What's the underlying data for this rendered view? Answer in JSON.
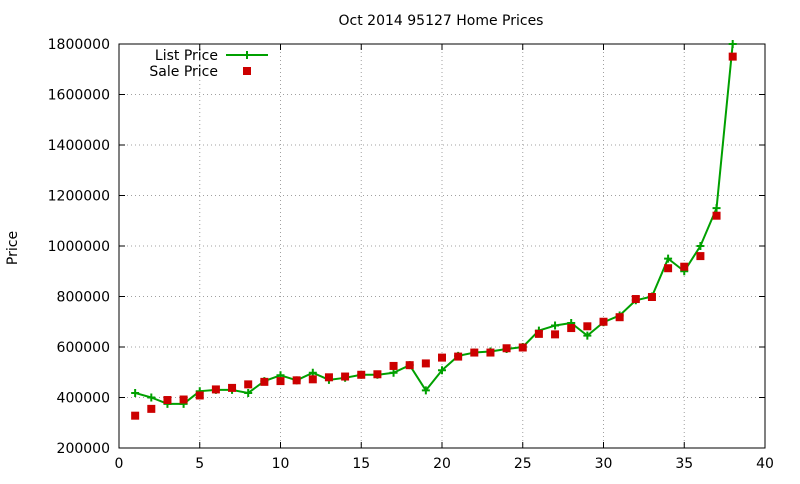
{
  "chart_data": {
    "type": "line",
    "title": "Oct 2014 95127 Home Prices",
    "xlabel": "",
    "ylabel": "Price",
    "xlim": [
      0,
      40
    ],
    "ylim": [
      200000,
      1800000
    ],
    "x_ticks": [
      0,
      5,
      10,
      15,
      20,
      25,
      30,
      35,
      40
    ],
    "y_ticks": [
      200000,
      400000,
      600000,
      800000,
      1000000,
      1200000,
      1400000,
      1600000,
      1800000
    ],
    "grid": true,
    "legend_position": "top-left",
    "series": [
      {
        "name": "List Price",
        "style": "line-with-plus-markers",
        "color": "#00a000",
        "x": [
          1,
          2,
          3,
          4,
          5,
          6,
          7,
          8,
          9,
          10,
          11,
          12,
          13,
          14,
          15,
          16,
          17,
          18,
          19,
          20,
          21,
          22,
          23,
          24,
          25,
          26,
          27,
          28,
          29,
          30,
          31,
          32,
          33,
          34,
          35,
          36,
          37,
          38
        ],
        "y": [
          418000,
          400000,
          375000,
          375000,
          425000,
          430000,
          430000,
          418000,
          465000,
          488000,
          468000,
          498000,
          470000,
          478000,
          490000,
          490000,
          498000,
          528000,
          428000,
          508000,
          565000,
          578000,
          582000,
          592000,
          600000,
          665000,
          685000,
          695000,
          645000,
          698000,
          725000,
          785000,
          800000,
          950000,
          900000,
          1000000,
          1150000,
          1800000
        ]
      },
      {
        "name": "Sale Price",
        "style": "square-markers",
        "color": "#cc0000",
        "x": [
          1,
          2,
          3,
          4,
          5,
          6,
          7,
          8,
          9,
          10,
          11,
          12,
          13,
          14,
          15,
          16,
          17,
          18,
          19,
          20,
          21,
          22,
          23,
          24,
          25,
          26,
          27,
          28,
          29,
          30,
          31,
          32,
          33,
          34,
          35,
          36,
          37,
          38
        ],
        "y": [
          328000,
          355000,
          390000,
          392000,
          408000,
          432000,
          438000,
          452000,
          462000,
          465000,
          468000,
          472000,
          480000,
          483000,
          490000,
          492000,
          525000,
          528000,
          535000,
          558000,
          562000,
          578000,
          578000,
          595000,
          598000,
          652000,
          650000,
          675000,
          682000,
          700000,
          718000,
          790000,
          798000,
          912000,
          918000,
          960000,
          1120000,
          1750000
        ]
      }
    ]
  }
}
